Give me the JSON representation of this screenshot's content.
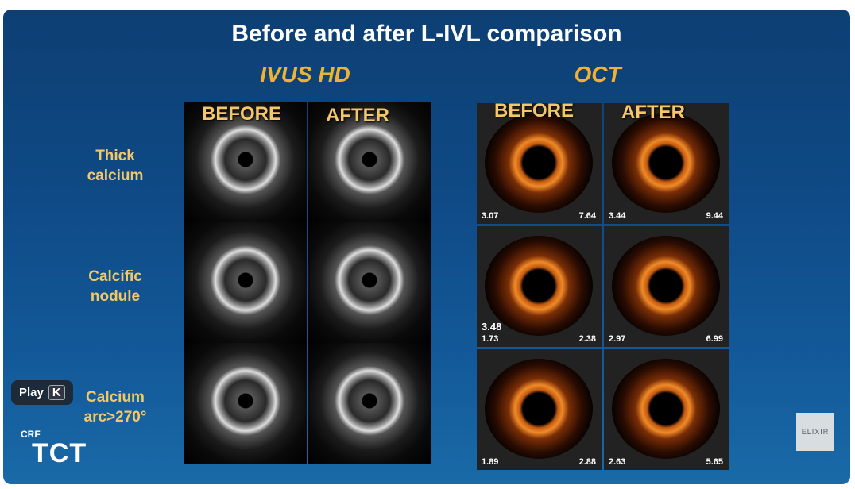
{
  "header": {
    "title": "Before and after L-IVL comparison"
  },
  "columns": {
    "ivus": {
      "title": "IVUS HD",
      "before": "BEFORE",
      "after": "AFTER"
    },
    "oct": {
      "title": "OCT",
      "before": "BEFORE",
      "after": "AFTER"
    }
  },
  "rows": [
    {
      "label": [
        "Thick",
        "calcium"
      ],
      "oct_before": [
        "3.07",
        "7.64"
      ],
      "oct_after": [
        "3.44",
        "9.44"
      ]
    },
    {
      "label": [
        "Calcific",
        "nodule"
      ],
      "oct_before": [
        "3.48",
        "1.73",
        "2.38"
      ],
      "oct_after": [
        "2.97",
        "6.99"
      ]
    },
    {
      "label": [
        "Calcium",
        "arc>270°"
      ],
      "oct_before": [
        "1.89",
        "2.88"
      ],
      "oct_after": [
        "2.63",
        "5.65"
      ]
    }
  ],
  "player": {
    "play": "Play",
    "key": "K"
  },
  "logos": {
    "crf": "CRF",
    "tct": "TCT",
    "elixir": "ELIXIR"
  }
}
